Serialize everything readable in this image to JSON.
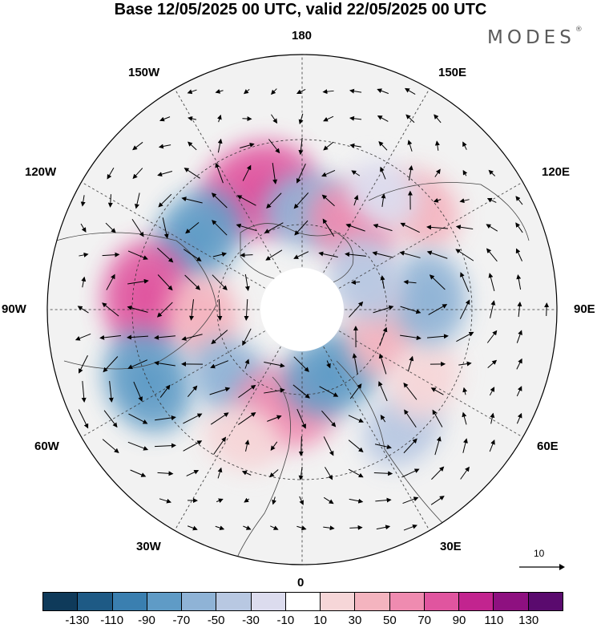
{
  "title": "Base 12/05/2025 00 UTC, valid 22/05/2025 00 UTC",
  "logo": "MODES",
  "logo_mark": "®",
  "lon_labels": {
    "top": "180",
    "top_left": "150W",
    "top_right": "150E",
    "upper_left": "120W",
    "upper_right": "120E",
    "left": "90W",
    "right": "90E",
    "lower_left": "60W",
    "lower_right": "60E",
    "bottom_left": "30W",
    "bottom_right": "30E",
    "bottom": "0"
  },
  "reference_vector": {
    "label": "10"
  },
  "colorbar": {
    "colors": [
      "#0f3a5a",
      "#1e5a85",
      "#3a7fb0",
      "#5f9bc6",
      "#8fb3d6",
      "#b8c8e2",
      "#dcdcee",
      "#ffffff",
      "#f6d6d8",
      "#f4b4bf",
      "#ef8bb0",
      "#e0559f",
      "#c2248f",
      "#8e1080",
      "#5a0a6e"
    ],
    "ticks": [
      "-130",
      "-110",
      "-90",
      "-70",
      "-50",
      "-30",
      "-10",
      "10",
      "30",
      "50",
      "70",
      "90",
      "110",
      "130"
    ]
  },
  "anomaly_centers": [
    {
      "lon": -160,
      "lat": 45,
      "value": 95,
      "color": "#e0559f"
    },
    {
      "lon": 175,
      "lat": 55,
      "value": -55,
      "color": "#8fb3d6"
    },
    {
      "lon": 150,
      "lat": 55,
      "value": 55,
      "color": "#ef8bb0"
    },
    {
      "lon": 130,
      "lat": 35,
      "value": 40,
      "color": "#f4b4bf"
    },
    {
      "lon": 145,
      "lat": 40,
      "value": -25,
      "color": "#dcdcee"
    },
    {
      "lon": -125,
      "lat": 45,
      "value": -65,
      "color": "#5f9bc6"
    },
    {
      "lon": -95,
      "lat": 35,
      "value": 85,
      "color": "#e0559f"
    },
    {
      "lon": -85,
      "lat": 55,
      "value": 45,
      "color": "#f4b4bf"
    },
    {
      "lon": -65,
      "lat": 30,
      "value": -75,
      "color": "#5f9bc6"
    },
    {
      "lon": -45,
      "lat": 55,
      "value": -50,
      "color": "#8fb3d6"
    },
    {
      "lon": -10,
      "lat": 55,
      "value": 70,
      "color": "#ef8bb0"
    },
    {
      "lon": -25,
      "lat": 40,
      "value": 30,
      "color": "#f6d6d8"
    },
    {
      "lon": 25,
      "lat": 65,
      "value": -65,
      "color": "#5f9bc6"
    },
    {
      "lon": 40,
      "lat": 35,
      "value": -40,
      "color": "#b8c8e2"
    },
    {
      "lon": 75,
      "lat": 60,
      "value": 55,
      "color": "#f4b4bf"
    },
    {
      "lon": 60,
      "lat": 40,
      "value": 35,
      "color": "#f6d6d8"
    },
    {
      "lon": 95,
      "lat": 45,
      "value": -55,
      "color": "#8fb3d6"
    },
    {
      "lon": 115,
      "lat": 65,
      "value": -45,
      "color": "#b8c8e2"
    }
  ]
}
